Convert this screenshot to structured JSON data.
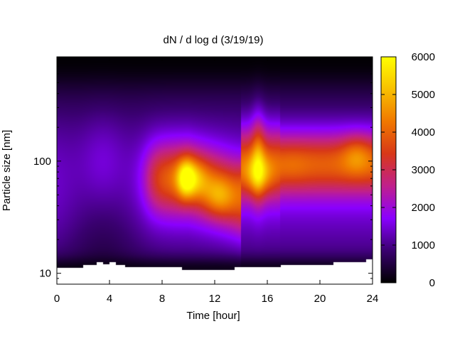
{
  "chart_data": {
    "type": "heatmap",
    "title": "dN / d log d (3/19/19)",
    "xlabel": "Time [hour]",
    "ylabel": "Particle size [nm]",
    "xlim": [
      0,
      24
    ],
    "ylim": [
      8,
      850
    ],
    "y_scale": "log",
    "x_ticks": [
      0,
      4,
      8,
      12,
      16,
      20,
      24
    ],
    "y_ticks": [
      {
        "value": 10,
        "label": "10"
      },
      {
        "value": 100,
        "label": "100"
      }
    ],
    "colorbar": {
      "range": [
        0,
        6000
      ],
      "ticks": [
        0,
        1000,
        2000,
        3000,
        4000,
        5000,
        6000
      ],
      "palette": [
        "#000000",
        "#3a0070",
        "#8a00ff",
        "#c0208c",
        "#d83818",
        "#f07800",
        "#f8c000",
        "#ffff00"
      ]
    },
    "grid": false,
    "lower_size_limit_nm": [
      {
        "t": 0,
        "d": 11.2
      },
      {
        "t": 2,
        "d": 11.8
      },
      {
        "t": 3,
        "d": 12.5
      },
      {
        "t": 3.5,
        "d": 12.0
      },
      {
        "t": 4,
        "d": 12.5
      },
      {
        "t": 4.5,
        "d": 11.8
      },
      {
        "t": 5.2,
        "d": 11.3
      },
      {
        "t": 9.5,
        "d": 10.7
      },
      {
        "t": 13.5,
        "d": 11.3
      },
      {
        "t": 17,
        "d": 11.8
      },
      {
        "t": 21,
        "d": 12.5
      },
      {
        "t": 23.5,
        "d": 13.3
      },
      {
        "t": 24,
        "d": 13.3
      }
    ],
    "upper_size_limit_nm": 850,
    "features": [
      {
        "t": 9.8,
        "d": 70,
        "value": 5200
      },
      {
        "t": 10.3,
        "d": 70,
        "value": 5000
      },
      {
        "t": 12.3,
        "d": 48,
        "value": 4600
      },
      {
        "t": 15.3,
        "d": 75,
        "value": 5000
      },
      {
        "t": 22.8,
        "d": 115,
        "value": 4400
      },
      {
        "t": 18,
        "d": 90,
        "value": 3700
      }
    ]
  }
}
